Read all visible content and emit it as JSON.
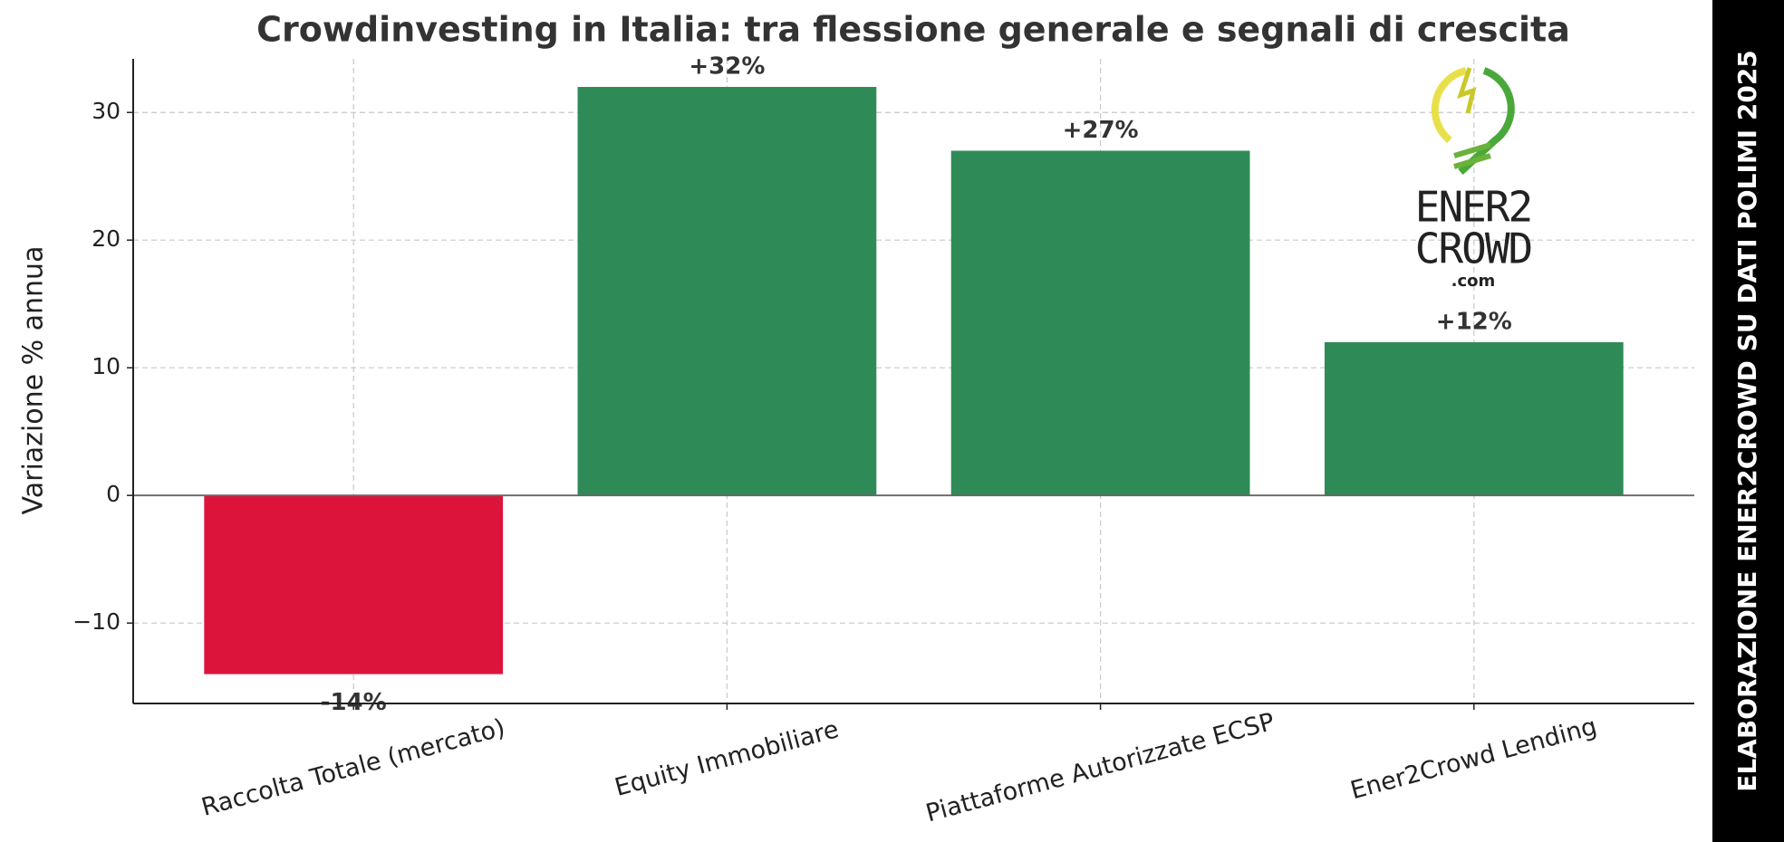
{
  "chart_data": {
    "type": "bar",
    "title": "Crowdinvesting in Italia: tra flessione generale e segnali di crescita",
    "ylabel": "Variazione % annua",
    "categories": [
      "Raccolta Totale (mercato)",
      "Equity Immobiliare",
      "Piattaforme Autorizzate ECSP",
      "Ener2Crowd Lending"
    ],
    "values": [
      -14,
      32,
      27,
      12
    ],
    "value_labels": [
      "-14%",
      "+32%",
      "+27%",
      "+12%"
    ],
    "colors": [
      "#dc143c",
      "#2e8b57",
      "#2e8b57",
      "#2e8b57"
    ],
    "ylim": [
      -16.3,
      34.2
    ],
    "yticks": [
      {
        "value": -10,
        "label": "−10"
      },
      0,
      10,
      20,
      30
    ],
    "grid": true,
    "logo_text": [
      "ENER2",
      "CROWD",
      ".com"
    ],
    "side_note": "ELABORAZIONE ENER2CROWD SU DATI POLIMI 2025"
  }
}
